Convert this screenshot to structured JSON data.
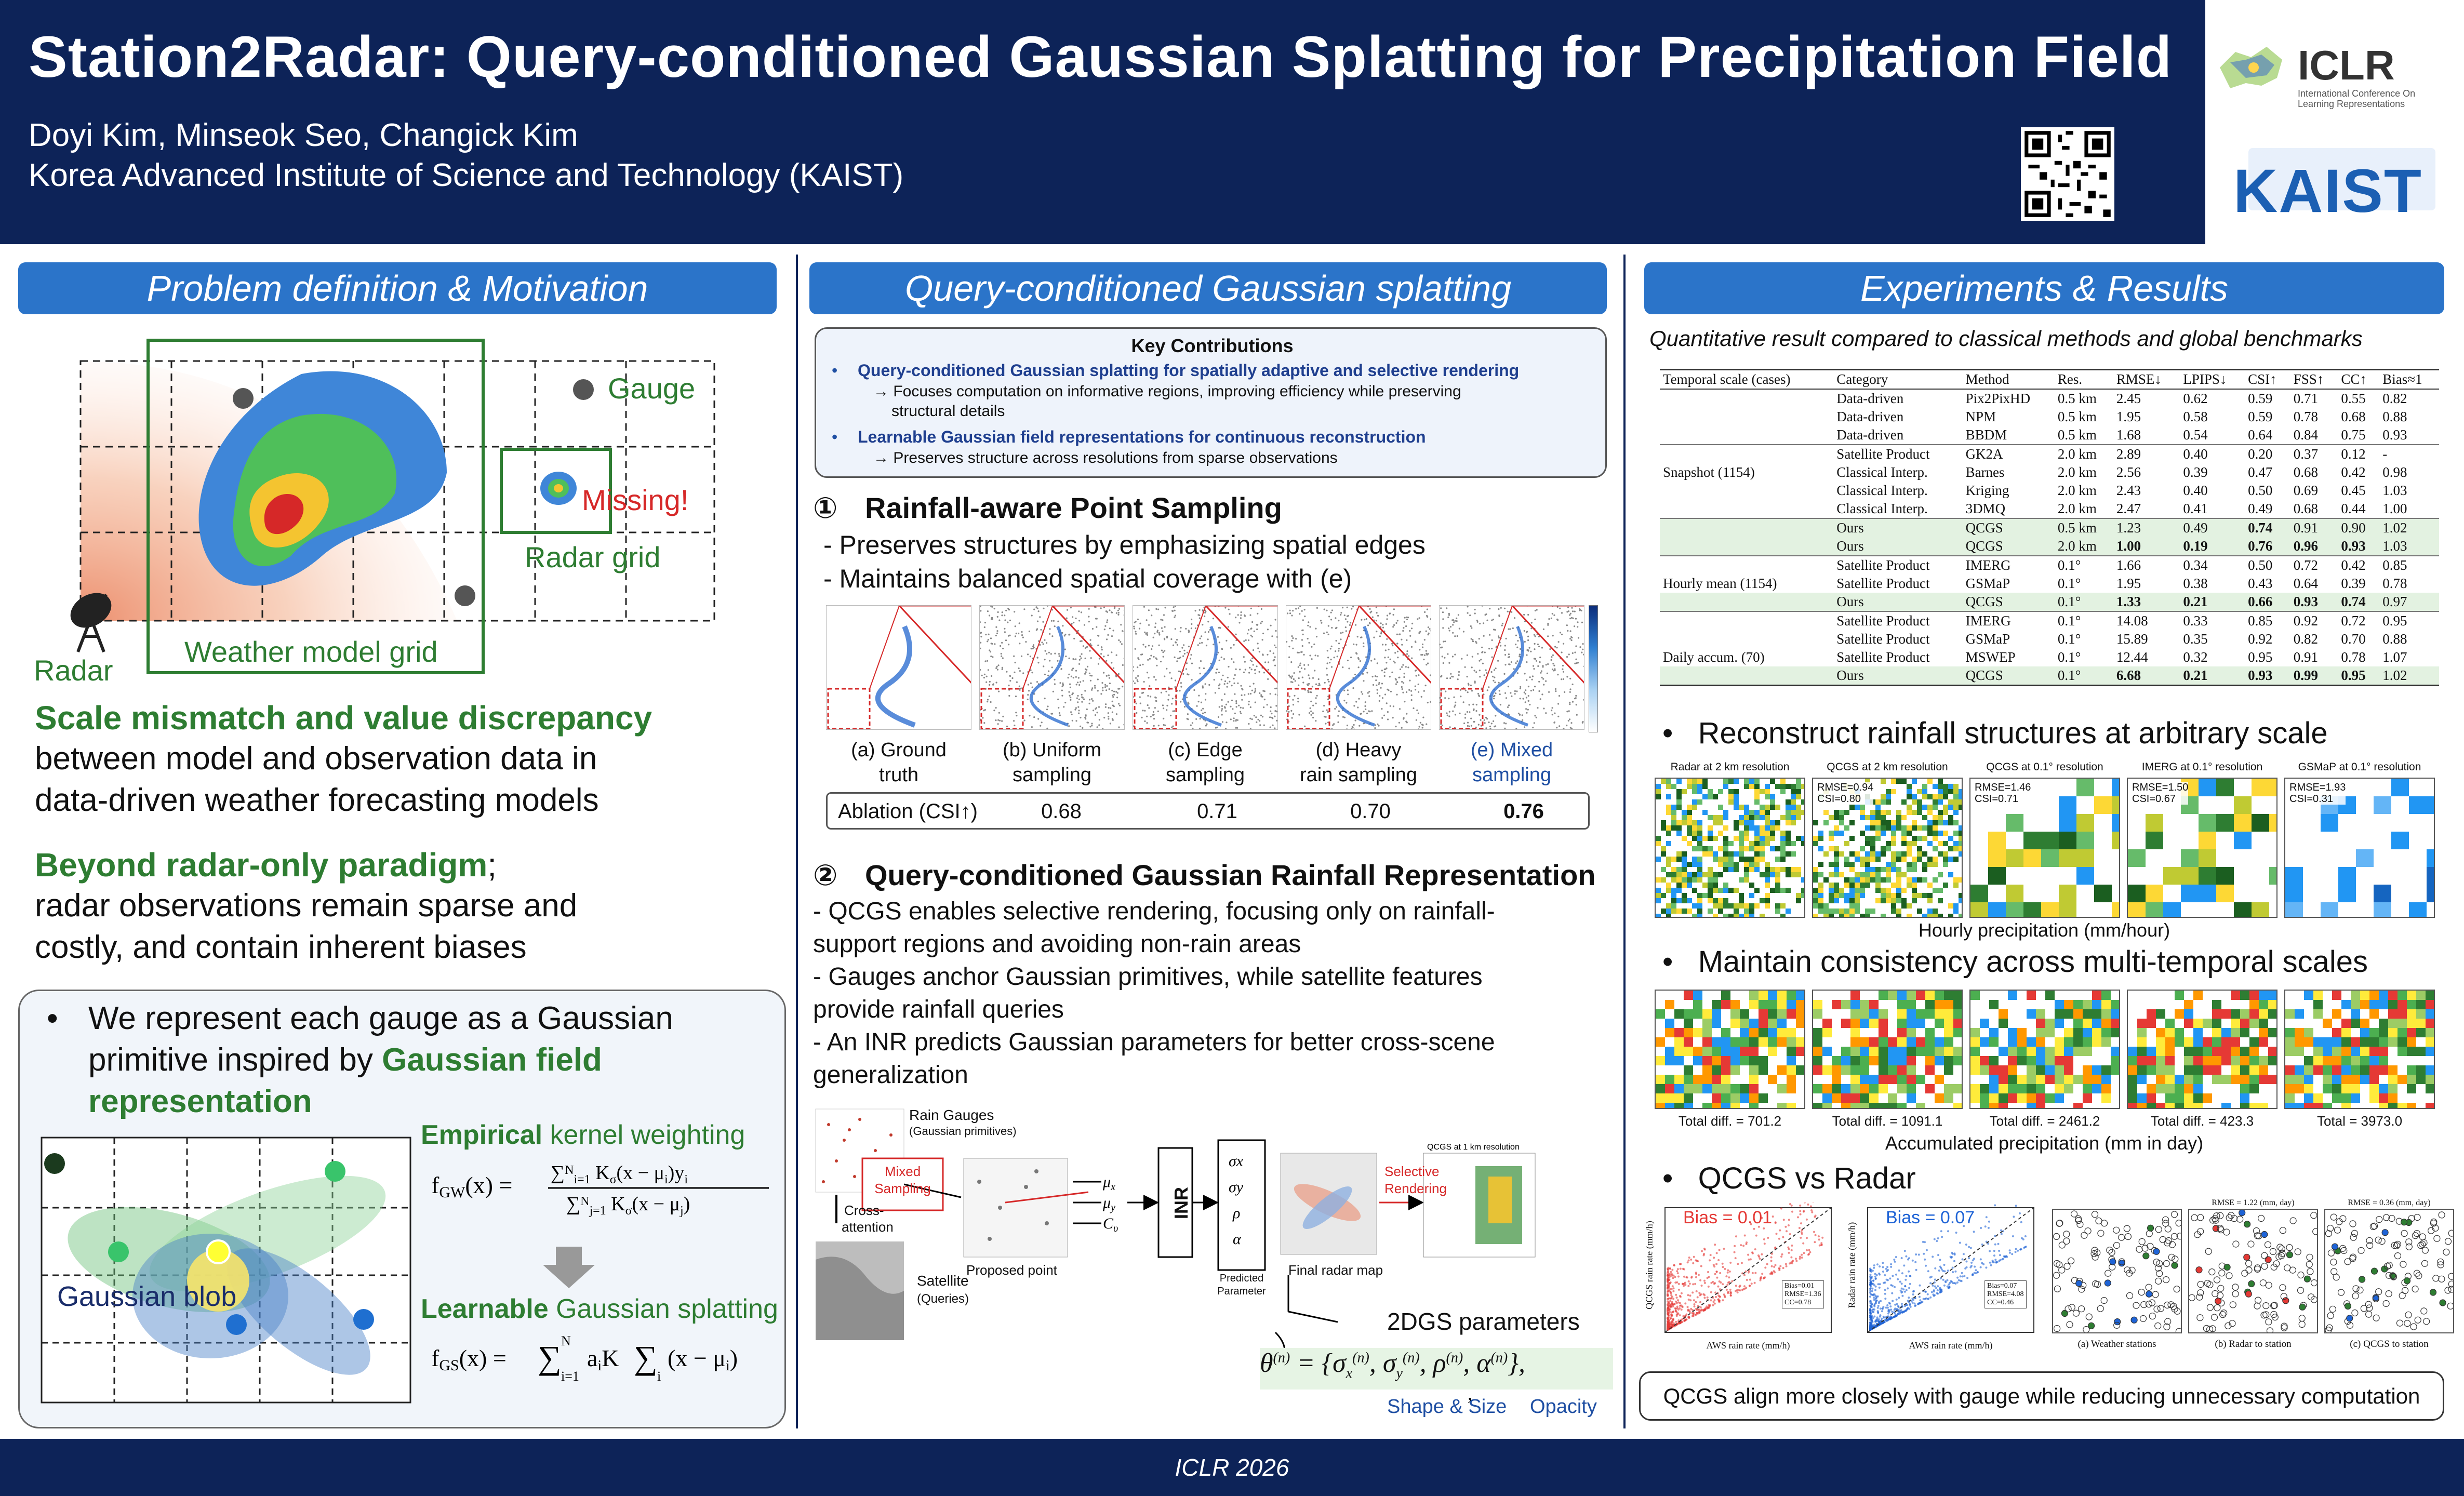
{
  "header": {
    "title": "Station2Radar: Query-conditioned Gaussian Splatting for Precipitation Field",
    "authors": "Doyi Kim, Minseok Seo, Changick Kim",
    "affiliation": "Korea Advanced Institute of Science and Technology (KAIST)",
    "iclr_logo": "ICLR",
    "iclr_sub": "International Conference On Learning Representations",
    "kaist_logo": "KAIST",
    "qr_icon": "qr-code-icon"
  },
  "footer": {
    "text": "ICLR 2026"
  },
  "col1": {
    "heading": "Problem definition & Motivation",
    "schematic": {
      "gauge": "Gauge",
      "missing": "Missing!",
      "radar_grid": "Radar grid",
      "weather_model_grid": "Weather model grid",
      "radar": "Radar"
    },
    "p1_green": "Scale mismatch and value discrepancy",
    "p1_line2": "between model and observation data in",
    "p1_line3": "data-driven weather forecasting models",
    "p2_green": "Beyond radar-only paradigm",
    "p2_semi": ";",
    "p2_line2": "radar observations remain sparse and",
    "p2_line3": "costly, and contain inherent biases",
    "box": {
      "bullet_line1": "We represent each gauge as a Gaussian",
      "bullet_line2": "primitive inspired by",
      "bullet_green": "Gaussian field",
      "bullet_line3": "representation",
      "empirical_green": "Empirical",
      "empirical_rest": " kernel weighting",
      "learnable_green": "Learnable",
      "learnable_rest": " Gaussian splatting",
      "gaussian_blob": "Gaussian blob"
    }
  },
  "col2": {
    "heading": "Query-conditioned Gaussian splatting",
    "key": {
      "title": "Key Contributions",
      "b1": "Query-conditioned Gaussian splatting for spatially adaptive and selective rendering",
      "b1a": "→ Focuses computation on informative regions, improving efficiency while preserving",
      "b1b": "structural details",
      "b2": "Learnable Gaussian field representations for continuous reconstruction",
      "b2a": "→ Preserves structure across resolutions from sparse observations"
    },
    "s1": {
      "num": "①",
      "title": "Rainfall-aware Point Sampling",
      "l1": "- Preserves structures by emphasizing spatial edges",
      "l2": "- Maintains balanced spatial coverage with (e)"
    },
    "samples": [
      {
        "l1": "(a) Ground",
        "l2": "truth"
      },
      {
        "l1": "(b) Uniform",
        "l2": "sampling"
      },
      {
        "l1": "(c) Edge",
        "l2": "sampling"
      },
      {
        "l1": "(d) Heavy",
        "l2": "rain sampling"
      },
      {
        "l1": "(e) Mixed",
        "l2": "sampling"
      }
    ],
    "ablation": {
      "label": "Ablation (CSI↑)",
      "values": [
        "0.68",
        "0.71",
        "0.70",
        "0.76"
      ]
    },
    "s2": {
      "num": "②",
      "title": "Query-conditioned Gaussian Rainfall Representation",
      "l1": "- QCGS enables selective rendering, focusing only on rainfall-",
      "l1b": "support regions and avoiding non-rain areas",
      "l2": "- Gauges anchor Gaussian primitives, while satellite features",
      "l2b": "provide rainfall queries",
      "l3": "- An INR predicts Gaussian parameters for better cross-scene",
      "l3b": "generalization"
    },
    "pipeline": {
      "rain_gauges": "Rain Gauges",
      "gauss_prim": "(Gaussian primitives)",
      "cross": "Cross-",
      "attention": "attention",
      "satellite": "Satellite",
      "queries": "(Queries)",
      "mixed": "Mixed",
      "sampling": "Sampling",
      "proposed": "Proposed point",
      "inr": "INR",
      "predicted": "Predicted",
      "parameter": "Parameter",
      "final": "Final radar map",
      "selective": "Selective",
      "rendering": "Rendering",
      "params2dgs": "2DGS parameters",
      "shape": "Shape & Size",
      "opacity": "Opacity"
    }
  },
  "col3": {
    "heading": "Experiments & Results",
    "subtitle": "Quantitative result compared to classical methods and global benchmarks",
    "table": {
      "headers": [
        "Temporal scale (cases)",
        "Category",
        "Method",
        "Res.",
        "RMSE↓",
        "LPIPS↓",
        "CSI↑",
        "FSS↑",
        "CC↑",
        "Bias≈1"
      ],
      "groups": [
        {
          "label": "Snapshot (1154)",
          "rows": [
            [
              "Data-driven",
              "Pix2PixHD",
              "0.5 km",
              "2.45",
              "0.62",
              "0.59",
              "0.71",
              "0.55",
              "0.82"
            ],
            [
              "Data-driven",
              "NPM",
              "0.5 km",
              "1.95",
              "0.58",
              "0.59",
              "0.78",
              "0.68",
              "0.88"
            ],
            [
              "Data-driven",
              "BBDM",
              "0.5 km",
              "1.68",
              "0.54",
              "0.64",
              "0.84",
              "0.75",
              "0.93"
            ],
            [
              "Satellite Product",
              "GK2A",
              "2.0 km",
              "2.89",
              "0.40",
              "0.20",
              "0.37",
              "0.12",
              "-"
            ],
            [
              "Classical Interp.",
              "Barnes",
              "2.0 km",
              "2.56",
              "0.39",
              "0.47",
              "0.68",
              "0.42",
              "0.98"
            ],
            [
              "Classical Interp.",
              "Kriging",
              "2.0 km",
              "2.43",
              "0.40",
              "0.50",
              "0.69",
              "0.45",
              "1.03"
            ],
            [
              "Classical Interp.",
              "3DMQ",
              "2.0 km",
              "2.47",
              "0.41",
              "0.49",
              "0.68",
              "0.44",
              "1.00"
            ],
            [
              "Ours",
              "QCGS",
              "0.5 km",
              "1.23",
              "0.49",
              "0.74",
              "0.91",
              "0.90",
              "1.02"
            ],
            [
              "Ours",
              "QCGS",
              "2.0 km",
              "1.00",
              "0.19",
              "0.76",
              "0.96",
              "0.93",
              "1.03"
            ]
          ]
        },
        {
          "label": "Hourly mean (1154)",
          "rows": [
            [
              "Satellite Product",
              "IMERG",
              "0.1°",
              "1.66",
              "0.34",
              "0.50",
              "0.72",
              "0.42",
              "0.85"
            ],
            [
              "Satellite Product",
              "GSMaP",
              "0.1°",
              "1.95",
              "0.38",
              "0.43",
              "0.64",
              "0.39",
              "0.78"
            ],
            [
              "Ours",
              "QCGS",
              "0.1°",
              "1.33",
              "0.21",
              "0.66",
              "0.93",
              "0.74",
              "0.97"
            ]
          ]
        },
        {
          "label": "Daily accum. (70)",
          "rows": [
            [
              "Satellite Product",
              "IMERG",
              "0.1°",
              "14.08",
              "0.33",
              "0.85",
              "0.92",
              "0.72",
              "0.95"
            ],
            [
              "Satellite Product",
              "GSMaP",
              "0.1°",
              "15.89",
              "0.35",
              "0.92",
              "0.82",
              "0.70",
              "0.88"
            ],
            [
              "Satellite Product",
              "MSWEP",
              "0.1°",
              "12.44",
              "0.32",
              "0.95",
              "0.91",
              "0.78",
              "1.07"
            ],
            [
              "Ours",
              "QCGS",
              "0.1°",
              "6.68",
              "0.21",
              "0.93",
              "0.99",
              "0.95",
              "1.02"
            ]
          ]
        }
      ]
    },
    "r1": "Reconstruct rainfall structures at arbitrary scale",
    "r1_tiles": [
      {
        "title": "Radar at 2 km resolution",
        "m1": "",
        "m2": ""
      },
      {
        "title": "QCGS at 2 km resolution",
        "m1": "RMSE=0.94",
        "m2": "CSI=0.80"
      },
      {
        "title": "QCGS at 0.1° resolution",
        "m1": "RMSE=1.46",
        "m2": "CSI=0.71"
      },
      {
        "title": "IMERG at 0.1° resolution",
        "m1": "RMSE=1.50",
        "m2": "CSI=0.67"
      },
      {
        "title": "GSMaP at 0.1° resolution",
        "m1": "RMSE=1.93",
        "m2": "CSI=0.31"
      }
    ],
    "r1_caption": "Hourly precipitation (mm/hour)",
    "r2": "Maintain consistency across multi-temporal scales",
    "r2_tiles": [
      "Total diff. = 701.2",
      "Total diff. = 1091.1",
      "Total diff. = 2461.2",
      "Total diff. = 423.3",
      "Total = 3973.0"
    ],
    "r2_caption": "Accumulated precipitation (mm in day)",
    "r3": "QCGS vs Radar",
    "scatter": [
      {
        "bias": "Bias = 0.01",
        "ylabel": "QCGS rain rate (mm/h)",
        "xlabel": "AWS rain rate (mm/h)",
        "note1": "Bias=0.01",
        "note2": "RMSE=1.36",
        "note3": "CC=0.78"
      },
      {
        "bias": "Bias = 0.07",
        "ylabel": "Radar rain rate (mm/h)",
        "xlabel": "AWS rain rate (mm/h)",
        "note1": "Bias=0.07",
        "note2": "RMSE=4.08",
        "note3": "CC=0.46"
      }
    ],
    "station_maps": [
      {
        "caption": "(a) Weather stations",
        "top": ""
      },
      {
        "caption": "(b) Radar to station",
        "top": "RMSE = 1.22 (mm, day)"
      },
      {
        "caption": "(c) QCGS to station",
        "top": "RMSE = 0.36 (mm, day)"
      }
    ],
    "conclusion": "QCGS align more closely with gauge while reducing unnecessary computation"
  }
}
